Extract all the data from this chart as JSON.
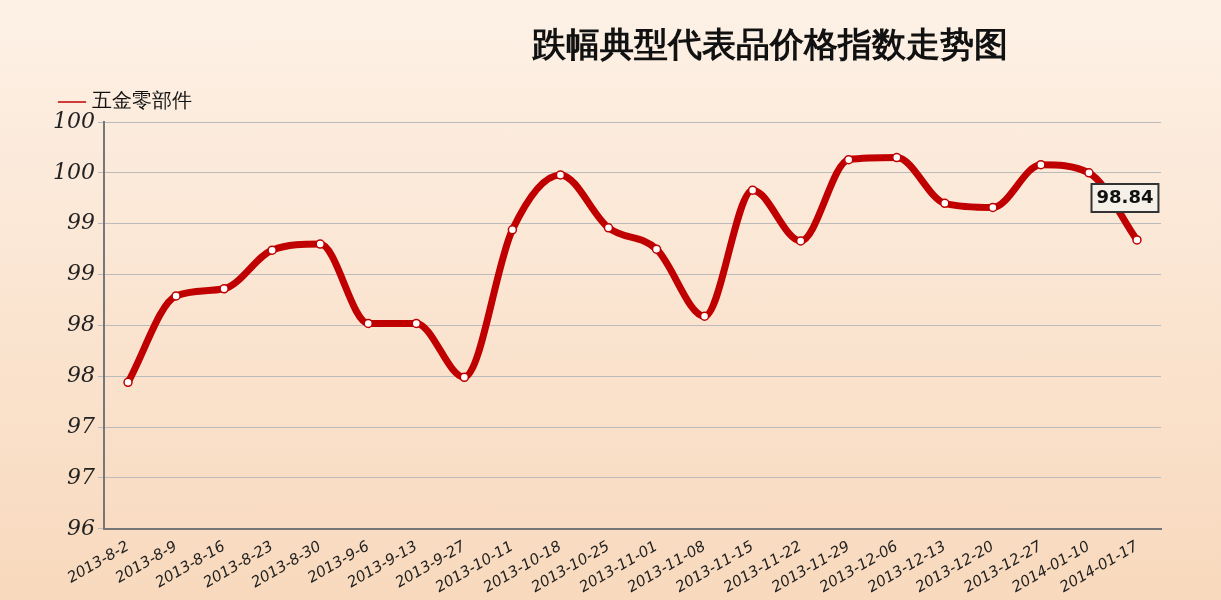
{
  "chart_data": {
    "type": "line",
    "title": "跌幅典型代表品价格指数走势图",
    "categories": [
      "2013-8-2",
      "2013-8-9",
      "2013-8-16",
      "2013-8-23",
      "2013-8-30",
      "2013-9-6",
      "2013-9-13",
      "2013-9-27",
      "2013-10-11",
      "2013-10-18",
      "2013-10-25",
      "2013-11-01",
      "2013-11-08",
      "2013-11-15",
      "2013-11-22",
      "2013-11-29",
      "2013-12-06",
      "2013-12-13",
      "2013-12-20",
      "2013-12-27",
      "2014-01-10",
      "2014-01-17"
    ],
    "series": [
      {
        "name": "五金零部件",
        "color": "#c00000",
        "values": [
          97.44,
          98.29,
          98.36,
          98.74,
          98.8,
          98.02,
          98.02,
          97.49,
          98.94,
          99.48,
          98.96,
          98.75,
          98.09,
          99.33,
          98.83,
          99.63,
          99.65,
          99.2,
          99.16,
          99.58,
          99.5,
          98.84
        ],
        "value_labels": [
          null,
          null,
          null,
          null,
          null,
          null,
          null,
          null,
          null,
          null,
          null,
          null,
          null,
          null,
          null,
          null,
          null,
          null,
          null,
          null,
          null,
          "98.84"
        ]
      }
    ],
    "ylim": [
      96,
      100
    ],
    "yticks": [
      96,
      {
        "value": 96.5,
        "label": "97"
      },
      97,
      {
        "value": 97.5,
        "label": "98"
      },
      98,
      {
        "value": 98.5,
        "label": "99"
      },
      99,
      {
        "value": 99.5,
        "label": "100"
      },
      100
    ],
    "grid": "y",
    "legend": "top left",
    "marker": "circle",
    "line_style": "solid"
  }
}
